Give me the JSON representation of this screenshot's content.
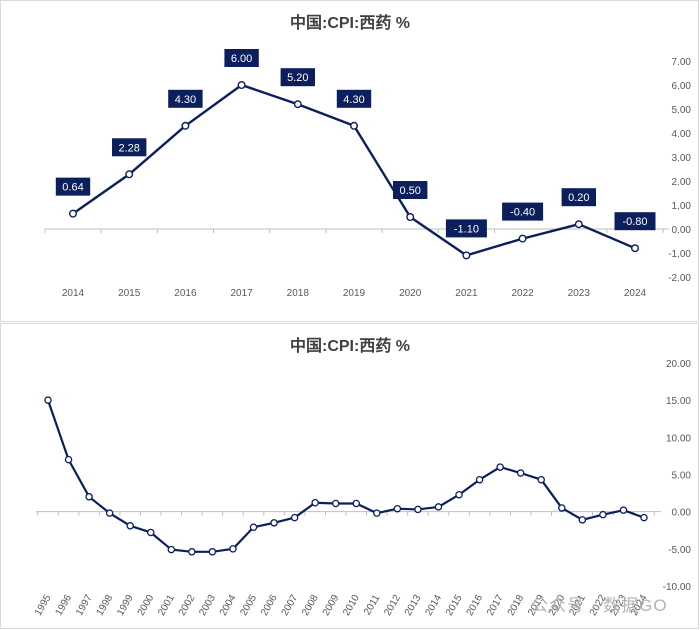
{
  "chart_data": [
    {
      "type": "line",
      "title": "中国:CPI:西药 %",
      "xlabel": "",
      "ylabel": "",
      "categories": [
        "2014",
        "2015",
        "2016",
        "2017",
        "2018",
        "2019",
        "2020",
        "2021",
        "2022",
        "2023",
        "2024"
      ],
      "series": [
        {
          "name": "中国:CPI:西药",
          "values": [
            0.64,
            2.28,
            4.3,
            6.0,
            5.2,
            4.3,
            0.5,
            -1.1,
            -0.4,
            0.2,
            -0.8
          ]
        }
      ],
      "data_labels": [
        "0.64",
        "2.28",
        "4.30",
        "6.00",
        "5.20",
        "4.30",
        "0.50",
        "-1.10",
        "-0.40",
        "0.20",
        "-0.80"
      ],
      "ylim": [
        -2,
        7
      ],
      "yticks": [
        "7.00",
        "6.00",
        "5.00",
        "4.00",
        "3.00",
        "2.00",
        "1.00",
        "0.00",
        "-1.00",
        "-2.00"
      ],
      "color": "#0a1f5c",
      "label_bg": "#0a1f5c"
    },
    {
      "type": "line",
      "title": "中国:CPI:西药 %",
      "xlabel": "",
      "ylabel": "",
      "categories": [
        "1995",
        "1996",
        "1997",
        "1998",
        "1999",
        "2000",
        "2001",
        "2002",
        "2003",
        "2004",
        "2005",
        "2006",
        "2007",
        "2008",
        "2009",
        "2010",
        "2011",
        "2012",
        "2013",
        "2014",
        "2015",
        "2016",
        "2017",
        "2018",
        "2019",
        "2020",
        "2021",
        "2022",
        "2023",
        "2024"
      ],
      "series": [
        {
          "name": "中国:CPI:西药",
          "values": [
            15.0,
            7.0,
            2.0,
            -0.2,
            -1.9,
            -2.8,
            -5.1,
            -5.4,
            -5.4,
            -5.0,
            -2.1,
            -1.5,
            -0.8,
            1.2,
            1.1,
            1.1,
            -0.2,
            0.4,
            0.3,
            0.64,
            2.28,
            4.3,
            6.0,
            5.2,
            4.3,
            0.5,
            -1.1,
            -0.4,
            0.2,
            -0.8
          ]
        }
      ],
      "ylim": [
        -10,
        20
      ],
      "yticks": [
        "20.00",
        "15.00",
        "10.00",
        "5.00",
        "0.00",
        "-5.00",
        "-10.00"
      ],
      "color": "#0a1f5c"
    }
  ],
  "watermark": "公众号 · 数据GO"
}
